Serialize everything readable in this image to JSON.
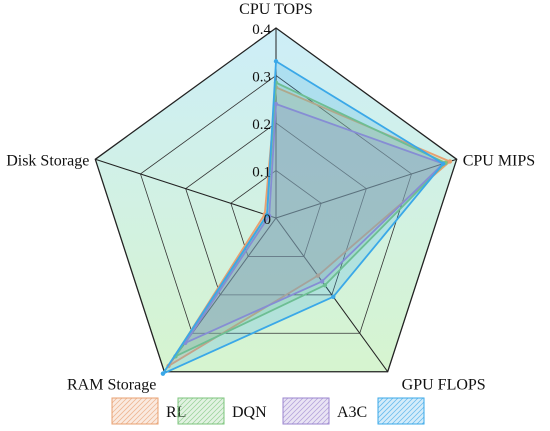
{
  "chart_data": {
    "type": "radar",
    "axes": [
      "CPU TOPS",
      "CPU MIPS",
      "GPU FLOPS",
      "RAM Storage",
      "Disk Storage"
    ],
    "ticks": [
      "0",
      "0.1",
      "0.2",
      "0.3",
      "0.4"
    ],
    "range": [
      0,
      0.4
    ],
    "series": [
      {
        "name": "RL",
        "color": "#e8a070",
        "values": [
          0.275,
          0.385,
          0.15,
          0.385,
          0.025
        ]
      },
      {
        "name": "DQN",
        "color": "#7cc47c",
        "values": [
          0.285,
          0.375,
          0.175,
          0.36,
          0.02
        ]
      },
      {
        "name": "A3C",
        "color": "#9b86cf",
        "values": [
          0.24,
          0.37,
          0.165,
          0.325,
          0.015
        ]
      },
      {
        "name": "",
        "color": "#3aa8e8",
        "values": [
          0.33,
          0.37,
          0.205,
          0.405,
          0.02
        ]
      }
    ],
    "legend_position": "bottom",
    "background_colors": {
      "top": "#cdeef8",
      "bottom": "#d6f4cf"
    }
  }
}
